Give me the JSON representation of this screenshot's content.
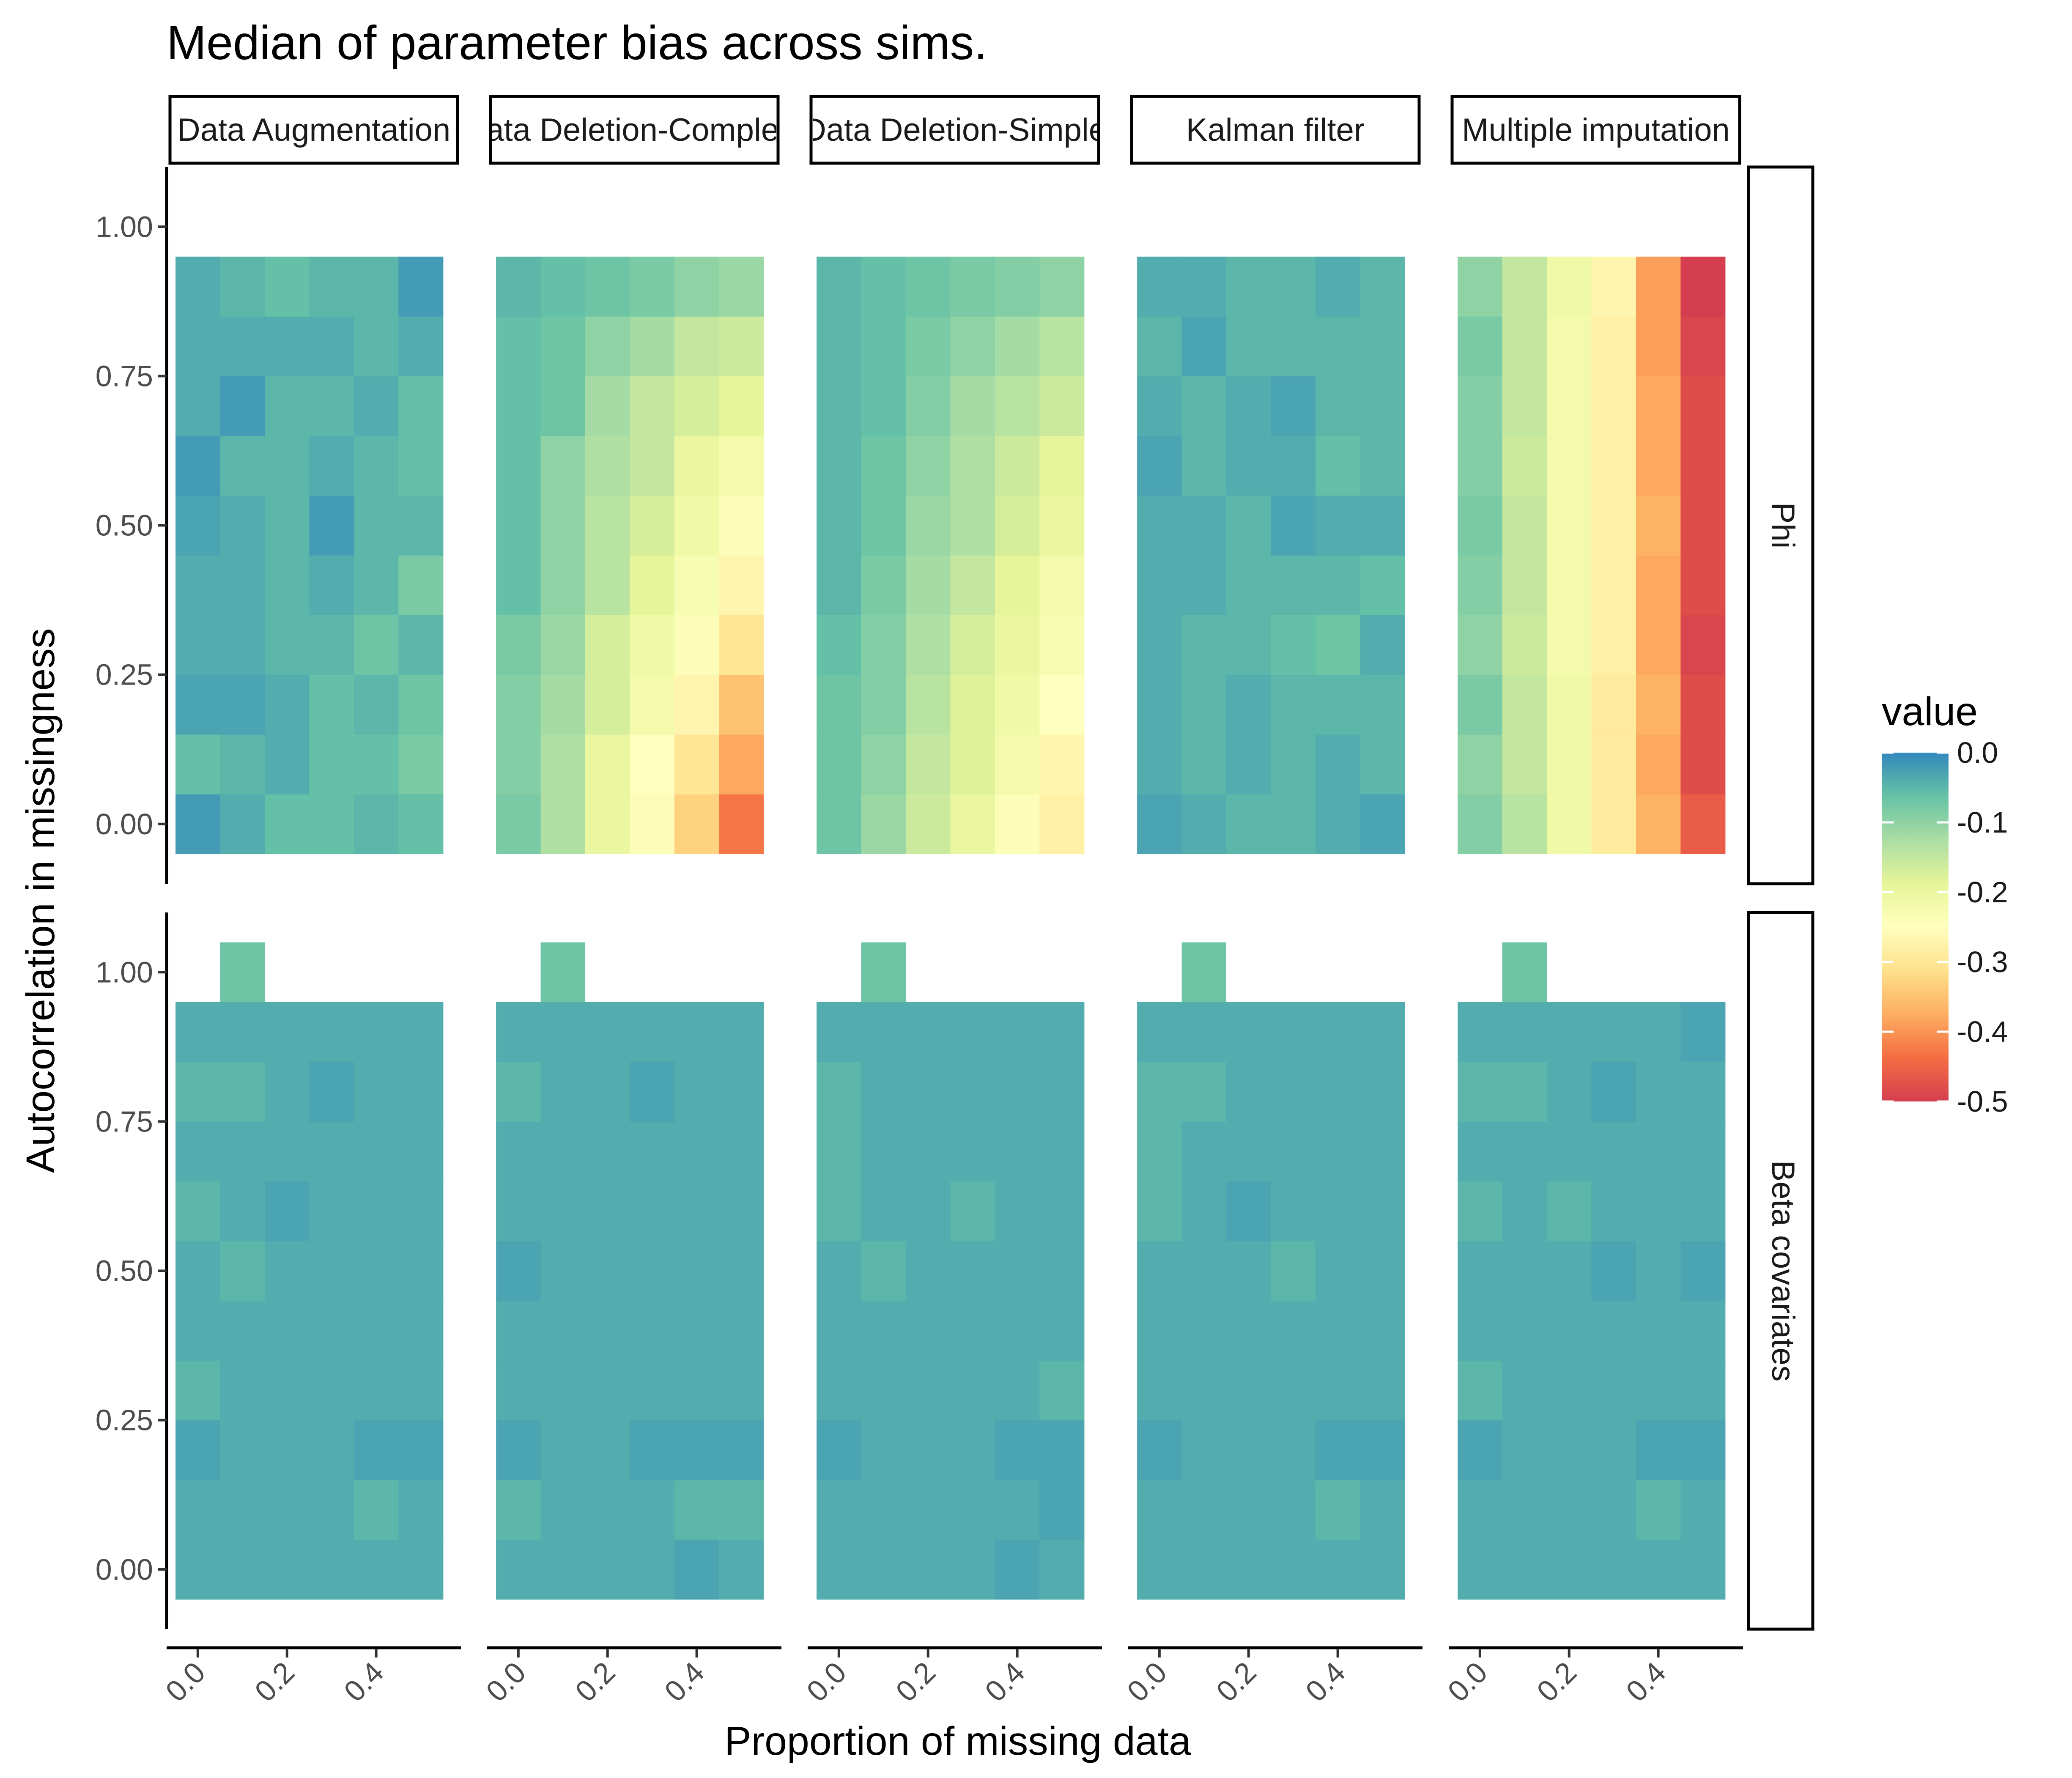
{
  "chart_data": {
    "type": "heatmap",
    "title": "Median of parameter bias across sims.",
    "xlabel": "Proportion of missing data",
    "ylabel": "Autocorrelation in missingness",
    "x_tick_labels": [
      "0.0",
      "0.2",
      "0.4"
    ],
    "x_ticks": [
      0.0,
      0.2,
      0.4
    ],
    "y_tick_labels": [
      "0.00",
      "0.25",
      "0.50",
      "0.75",
      "1.00"
    ],
    "y_ticks": [
      0.0,
      0.25,
      0.5,
      0.75,
      1.0
    ],
    "xlim": [
      -0.07,
      0.59
    ],
    "ylim": [
      -0.1,
      1.1
    ],
    "x": [
      0.0,
      0.1,
      0.2,
      0.3,
      0.4,
      0.5
    ],
    "y": [
      0.0,
      0.1,
      0.2,
      0.3,
      0.4,
      0.5,
      0.6,
      0.7,
      0.8,
      0.9
    ],
    "x_extra_cell": 0.1,
    "y_extra_cell": 1.0,
    "columns": [
      "Data Augmentation",
      "Data Deletion-Complete",
      "Data Deletion-Simple",
      "Kalman filter",
      "Multiple imputation"
    ],
    "column_strip_labels": [
      "Data Augmentation",
      "Data Deletion-Complete",
      "Data Deletion-Simple",
      "Kalman filter",
      "Multiple imputation"
    ],
    "rows": [
      "Phi",
      "Beta covariates"
    ],
    "legend": {
      "title": "value",
      "tick_labels": [
        "0.0",
        "-0.1",
        "-0.2",
        "-0.3",
        "-0.4",
        "-0.5"
      ],
      "ticks": [
        0.0,
        -0.1,
        -0.2,
        -0.3,
        -0.4,
        -0.5
      ],
      "limits": [
        -0.5,
        0.0
      ],
      "placement": "right",
      "colors": [
        "#d53e4f",
        "#f46d43",
        "#fdae61",
        "#fee08b",
        "#ffffbf",
        "#e6f598",
        "#abdda4",
        "#66c2a5",
        "#3288bd"
      ]
    },
    "grid": false,
    "panels": [
      {
        "row": "Phi",
        "column": "Data Augmentation",
        "values": [
          [
            -0.02,
            -0.04,
            -0.06,
            -0.06,
            -0.05,
            -0.06
          ],
          [
            -0.06,
            -0.05,
            -0.04,
            -0.06,
            -0.06,
            -0.08
          ],
          [
            -0.03,
            -0.03,
            -0.04,
            -0.06,
            -0.05,
            -0.07
          ],
          [
            -0.04,
            -0.04,
            -0.05,
            -0.05,
            -0.07,
            -0.05
          ],
          [
            -0.04,
            -0.04,
            -0.05,
            -0.04,
            -0.05,
            -0.08
          ],
          [
            -0.03,
            -0.04,
            -0.05,
            -0.02,
            -0.05,
            -0.05
          ],
          [
            -0.02,
            -0.05,
            -0.05,
            -0.04,
            -0.05,
            -0.06
          ],
          [
            -0.04,
            -0.02,
            -0.05,
            -0.05,
            -0.04,
            -0.06
          ],
          [
            -0.04,
            -0.04,
            -0.04,
            -0.04,
            -0.05,
            -0.04
          ],
          [
            -0.04,
            -0.05,
            -0.06,
            -0.05,
            -0.05,
            -0.02
          ]
        ],
        "extra_value": null
      },
      {
        "row": "Phi",
        "column": "Data Deletion-Complete",
        "values": [
          [
            -0.08,
            -0.13,
            -0.2,
            -0.24,
            -0.33,
            -0.43
          ],
          [
            -0.09,
            -0.13,
            -0.2,
            -0.25,
            -0.3,
            -0.38
          ],
          [
            -0.09,
            -0.12,
            -0.17,
            -0.22,
            -0.27,
            -0.35
          ],
          [
            -0.08,
            -0.11,
            -0.17,
            -0.21,
            -0.24,
            -0.3
          ],
          [
            -0.06,
            -0.1,
            -0.14,
            -0.19,
            -0.23,
            -0.27
          ],
          [
            -0.06,
            -0.1,
            -0.14,
            -0.17,
            -0.21,
            -0.24
          ],
          [
            -0.06,
            -0.1,
            -0.13,
            -0.15,
            -0.2,
            -0.22
          ],
          [
            -0.06,
            -0.07,
            -0.12,
            -0.15,
            -0.17,
            -0.19
          ],
          [
            -0.06,
            -0.07,
            -0.1,
            -0.12,
            -0.15,
            -0.16
          ],
          [
            -0.05,
            -0.06,
            -0.07,
            -0.08,
            -0.1,
            -0.11
          ]
        ],
        "extra_value": null
      },
      {
        "row": "Phi",
        "column": "Data Deletion-Simple",
        "values": [
          [
            -0.07,
            -0.11,
            -0.16,
            -0.2,
            -0.24,
            -0.28
          ],
          [
            -0.07,
            -0.1,
            -0.15,
            -0.18,
            -0.22,
            -0.27
          ],
          [
            -0.07,
            -0.09,
            -0.14,
            -0.18,
            -0.21,
            -0.25
          ],
          [
            -0.06,
            -0.09,
            -0.13,
            -0.17,
            -0.2,
            -0.23
          ],
          [
            -0.05,
            -0.08,
            -0.12,
            -0.15,
            -0.19,
            -0.22
          ],
          [
            -0.05,
            -0.07,
            -0.11,
            -0.13,
            -0.17,
            -0.2
          ],
          [
            -0.05,
            -0.07,
            -0.1,
            -0.13,
            -0.16,
            -0.19
          ],
          [
            -0.05,
            -0.06,
            -0.09,
            -0.12,
            -0.14,
            -0.16
          ],
          [
            -0.05,
            -0.06,
            -0.08,
            -0.1,
            -0.12,
            -0.14
          ],
          [
            -0.05,
            -0.06,
            -0.07,
            -0.08,
            -0.09,
            -0.1
          ]
        ],
        "extra_value": null
      },
      {
        "row": "Phi",
        "column": "Kalman filter",
        "values": [
          [
            -0.03,
            -0.04,
            -0.05,
            -0.05,
            -0.04,
            -0.03
          ],
          [
            -0.04,
            -0.05,
            -0.04,
            -0.05,
            -0.04,
            -0.05
          ],
          [
            -0.04,
            -0.05,
            -0.04,
            -0.05,
            -0.05,
            -0.05
          ],
          [
            -0.04,
            -0.05,
            -0.05,
            -0.06,
            -0.07,
            -0.04
          ],
          [
            -0.04,
            -0.04,
            -0.05,
            -0.05,
            -0.05,
            -0.06
          ],
          [
            -0.04,
            -0.04,
            -0.05,
            -0.03,
            -0.04,
            -0.04
          ],
          [
            -0.03,
            -0.05,
            -0.04,
            -0.04,
            -0.06,
            -0.05
          ],
          [
            -0.04,
            -0.05,
            -0.04,
            -0.03,
            -0.05,
            -0.05
          ],
          [
            -0.05,
            -0.03,
            -0.05,
            -0.05,
            -0.05,
            -0.05
          ],
          [
            -0.04,
            -0.04,
            -0.05,
            -0.05,
            -0.04,
            -0.05
          ]
        ],
        "extra_value": null
      },
      {
        "row": "Phi",
        "column": "Multiple imputation",
        "values": [
          [
            -0.09,
            -0.14,
            -0.21,
            -0.29,
            -0.37,
            -0.46
          ],
          [
            -0.1,
            -0.15,
            -0.21,
            -0.29,
            -0.38,
            -0.48
          ],
          [
            -0.08,
            -0.15,
            -0.21,
            -0.29,
            -0.37,
            -0.48
          ],
          [
            -0.1,
            -0.16,
            -0.22,
            -0.28,
            -0.38,
            -0.49
          ],
          [
            -0.09,
            -0.15,
            -0.22,
            -0.28,
            -0.38,
            -0.48
          ],
          [
            -0.08,
            -0.15,
            -0.22,
            -0.28,
            -0.37,
            -0.48
          ],
          [
            -0.09,
            -0.16,
            -0.22,
            -0.28,
            -0.38,
            -0.48
          ],
          [
            -0.09,
            -0.15,
            -0.22,
            -0.28,
            -0.38,
            -0.48
          ],
          [
            -0.08,
            -0.15,
            -0.22,
            -0.28,
            -0.39,
            -0.49
          ],
          [
            -0.1,
            -0.15,
            -0.21,
            -0.27,
            -0.39,
            -0.5
          ]
        ],
        "extra_value": null
      },
      {
        "row": "Beta covariates",
        "column": "Data Augmentation",
        "values": [
          [
            -0.04,
            -0.04,
            -0.04,
            -0.04,
            -0.04,
            -0.04
          ],
          [
            -0.04,
            -0.04,
            -0.04,
            -0.04,
            -0.05,
            -0.04
          ],
          [
            -0.03,
            -0.04,
            -0.04,
            -0.04,
            -0.03,
            -0.03
          ],
          [
            -0.05,
            -0.04,
            -0.04,
            -0.04,
            -0.04,
            -0.04
          ],
          [
            -0.04,
            -0.04,
            -0.04,
            -0.04,
            -0.04,
            -0.04
          ],
          [
            -0.04,
            -0.05,
            -0.04,
            -0.04,
            -0.04,
            -0.04
          ],
          [
            -0.05,
            -0.04,
            -0.03,
            -0.04,
            -0.04,
            -0.04
          ],
          [
            -0.04,
            -0.04,
            -0.04,
            -0.04,
            -0.04,
            -0.04
          ],
          [
            -0.05,
            -0.05,
            -0.04,
            -0.03,
            -0.04,
            -0.04
          ],
          [
            -0.04,
            -0.04,
            -0.04,
            -0.04,
            -0.04,
            -0.04
          ]
        ],
        "extra_value": -0.07
      },
      {
        "row": "Beta covariates",
        "column": "Data Deletion-Complete",
        "values": [
          [
            -0.04,
            -0.04,
            -0.04,
            -0.04,
            -0.03,
            -0.04
          ],
          [
            -0.05,
            -0.04,
            -0.04,
            -0.04,
            -0.05,
            -0.05
          ],
          [
            -0.03,
            -0.04,
            -0.04,
            -0.03,
            -0.03,
            -0.03
          ],
          [
            -0.04,
            -0.04,
            -0.04,
            -0.04,
            -0.04,
            -0.04
          ],
          [
            -0.04,
            -0.04,
            -0.04,
            -0.04,
            -0.04,
            -0.04
          ],
          [
            -0.03,
            -0.04,
            -0.04,
            -0.04,
            -0.04,
            -0.04
          ],
          [
            -0.04,
            -0.04,
            -0.04,
            -0.04,
            -0.04,
            -0.04
          ],
          [
            -0.04,
            -0.04,
            -0.04,
            -0.04,
            -0.04,
            -0.04
          ],
          [
            -0.05,
            -0.04,
            -0.04,
            -0.03,
            -0.04,
            -0.04
          ],
          [
            -0.04,
            -0.04,
            -0.04,
            -0.04,
            -0.04,
            -0.04
          ]
        ],
        "extra_value": -0.07
      },
      {
        "row": "Beta covariates",
        "column": "Data Deletion-Simple",
        "values": [
          [
            -0.04,
            -0.04,
            -0.04,
            -0.04,
            -0.03,
            -0.04
          ],
          [
            -0.04,
            -0.04,
            -0.04,
            -0.04,
            -0.04,
            -0.03
          ],
          [
            -0.03,
            -0.04,
            -0.04,
            -0.04,
            -0.03,
            -0.03
          ],
          [
            -0.04,
            -0.04,
            -0.04,
            -0.04,
            -0.04,
            -0.05
          ],
          [
            -0.04,
            -0.04,
            -0.04,
            -0.04,
            -0.04,
            -0.04
          ],
          [
            -0.04,
            -0.05,
            -0.04,
            -0.04,
            -0.04,
            -0.04
          ],
          [
            -0.05,
            -0.04,
            -0.04,
            -0.05,
            -0.04,
            -0.04
          ],
          [
            -0.05,
            -0.04,
            -0.04,
            -0.04,
            -0.04,
            -0.04
          ],
          [
            -0.05,
            -0.04,
            -0.04,
            -0.04,
            -0.04,
            -0.04
          ],
          [
            -0.04,
            -0.04,
            -0.04,
            -0.04,
            -0.04,
            -0.04
          ]
        ],
        "extra_value": -0.07
      },
      {
        "row": "Beta covariates",
        "column": "Kalman filter",
        "values": [
          [
            -0.04,
            -0.04,
            -0.04,
            -0.04,
            -0.04,
            -0.04
          ],
          [
            -0.04,
            -0.04,
            -0.04,
            -0.04,
            -0.05,
            -0.04
          ],
          [
            -0.03,
            -0.04,
            -0.04,
            -0.04,
            -0.03,
            -0.03
          ],
          [
            -0.04,
            -0.04,
            -0.04,
            -0.04,
            -0.04,
            -0.04
          ],
          [
            -0.04,
            -0.04,
            -0.04,
            -0.04,
            -0.04,
            -0.04
          ],
          [
            -0.04,
            -0.04,
            -0.04,
            -0.05,
            -0.04,
            -0.04
          ],
          [
            -0.05,
            -0.04,
            -0.03,
            -0.04,
            -0.04,
            -0.04
          ],
          [
            -0.05,
            -0.04,
            -0.04,
            -0.04,
            -0.04,
            -0.04
          ],
          [
            -0.05,
            -0.05,
            -0.04,
            -0.04,
            -0.04,
            -0.04
          ],
          [
            -0.04,
            -0.04,
            -0.04,
            -0.04,
            -0.04,
            -0.04
          ]
        ],
        "extra_value": -0.07
      },
      {
        "row": "Beta covariates",
        "column": "Multiple imputation",
        "values": [
          [
            -0.04,
            -0.04,
            -0.04,
            -0.04,
            -0.04,
            -0.04
          ],
          [
            -0.04,
            -0.04,
            -0.04,
            -0.04,
            -0.05,
            -0.04
          ],
          [
            -0.03,
            -0.04,
            -0.04,
            -0.04,
            -0.03,
            -0.03
          ],
          [
            -0.05,
            -0.04,
            -0.04,
            -0.04,
            -0.04,
            -0.04
          ],
          [
            -0.04,
            -0.04,
            -0.04,
            -0.04,
            -0.04,
            -0.04
          ],
          [
            -0.04,
            -0.04,
            -0.04,
            -0.03,
            -0.04,
            -0.03
          ],
          [
            -0.05,
            -0.04,
            -0.05,
            -0.04,
            -0.04,
            -0.04
          ],
          [
            -0.04,
            -0.04,
            -0.04,
            -0.04,
            -0.04,
            -0.04
          ],
          [
            -0.05,
            -0.05,
            -0.04,
            -0.03,
            -0.04,
            -0.04
          ],
          [
            -0.04,
            -0.04,
            -0.04,
            -0.04,
            -0.04,
            -0.03
          ]
        ],
        "extra_value": -0.07
      }
    ]
  }
}
